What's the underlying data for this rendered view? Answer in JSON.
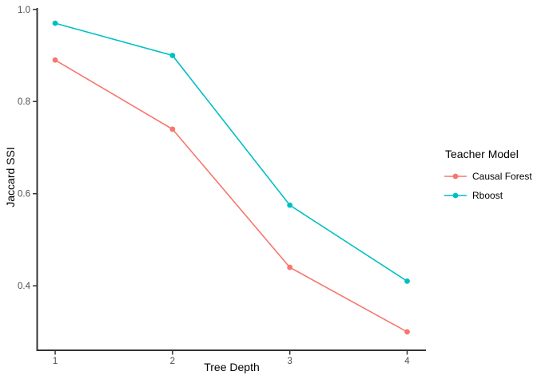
{
  "chart_data": {
    "type": "line",
    "title": "",
    "xlabel": "Tree Depth",
    "ylabel": "Jaccard SSI",
    "x": [
      1,
      2,
      3,
      4
    ],
    "series": [
      {
        "name": "Causal Forest",
        "color": "#F8766D",
        "values": [
          0.89,
          0.74,
          0.44,
          0.3
        ]
      },
      {
        "name": "Rboost",
        "color": "#00BFC4",
        "values": [
          0.97,
          0.9,
          0.575,
          0.41
        ]
      }
    ],
    "xticks": [
      1,
      2,
      3,
      4
    ],
    "xtick_labels": [
      "1",
      "2",
      "3",
      "4"
    ],
    "yticks": [
      0.4,
      0.6,
      0.8,
      1.0
    ],
    "ytick_labels": [
      "0.4",
      "0.6",
      "0.8",
      "1.0"
    ],
    "xlim": [
      0.85,
      4.16
    ],
    "ylim": [
      0.26,
      1.01
    ],
    "grid": false,
    "legend": {
      "title": "Teacher Model",
      "position": "right"
    },
    "colors": {
      "axis": "#333333",
      "tick_label": "#4D4D4D",
      "text": "#000000",
      "background": "#FFFFFF"
    }
  }
}
